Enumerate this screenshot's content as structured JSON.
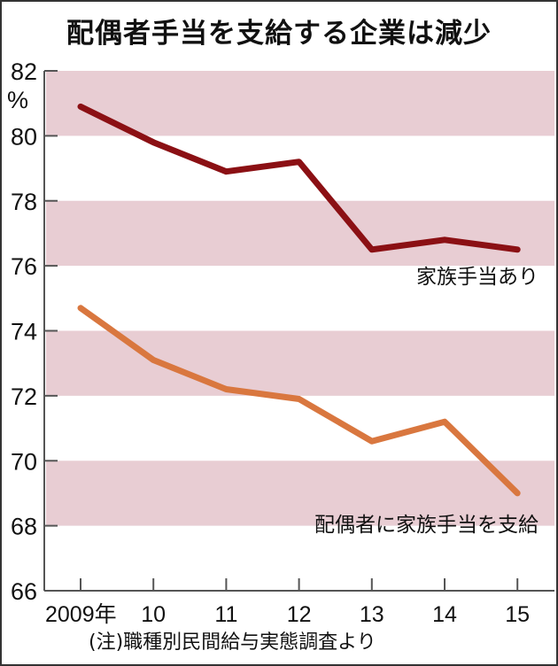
{
  "chart_data": {
    "type": "line",
    "title": "配偶者手当を支給する企業は減少",
    "xlabel": "",
    "ylabel": "%",
    "y_unit": "%",
    "categories": [
      "2009年",
      "10",
      "11",
      "12",
      "13",
      "14",
      "15"
    ],
    "x": [
      2009,
      2010,
      2011,
      2012,
      2013,
      2014,
      2015
    ],
    "series": [
      {
        "name": "家族手当あり",
        "color": "#8B1014",
        "values": [
          80.9,
          79.8,
          78.9,
          79.2,
          76.5,
          76.8,
          76.5
        ]
      },
      {
        "name": "配偶者に家族手当を支給",
        "color": "#D9773F",
        "values": [
          74.7,
          73.1,
          72.2,
          71.9,
          70.6,
          71.2,
          69.0
        ]
      }
    ],
    "ylim": [
      66,
      82
    ],
    "yticks": [
      66,
      68,
      70,
      72,
      74,
      76,
      78,
      80,
      82
    ],
    "grid": "alternating horizontal bands",
    "band_color": "#E8CDD3",
    "legend": "direct labels next to lines",
    "note": "(注)職種別民間給与実態調査より"
  },
  "ui": {
    "title": "配偶者手当を支給する企業は減少",
    "y_unit_label": "%",
    "yticks": [
      "82",
      "80",
      "78",
      "76",
      "74",
      "72",
      "70",
      "68",
      "66"
    ],
    "xticks": [
      "2009年",
      "10",
      "11",
      "12",
      "13",
      "14",
      "15"
    ],
    "series_labels": [
      "家族手当あり",
      "配偶者に家族手当を支給"
    ],
    "note": "(注)職種別民間給与実態調査より"
  }
}
